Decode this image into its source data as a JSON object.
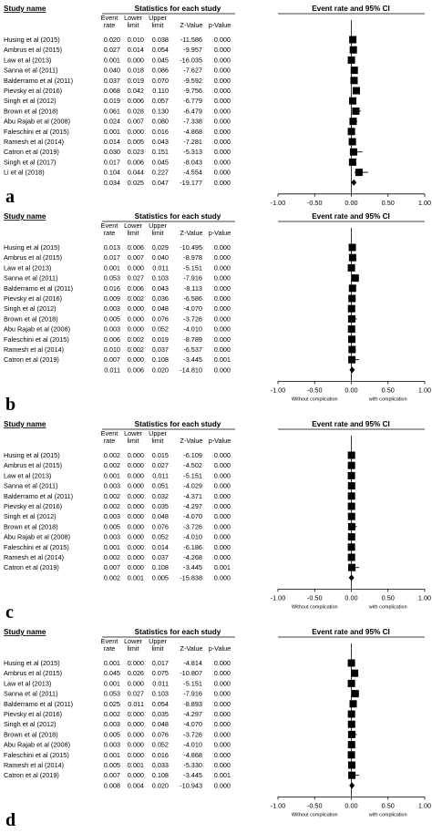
{
  "chart_data": [
    {
      "type": "forest",
      "panel_label": "a",
      "header": {
        "study_name": "Study name",
        "stats_title": "Statistics for each study",
        "plot_title": "Event rate and 95% CI"
      },
      "columns": [
        "Event rate",
        "Lower limit",
        "Upper limit",
        "Z-Value",
        "p-Value"
      ],
      "col_head": [
        [
          "Event",
          "rate"
        ],
        [
          "Lower",
          "limit"
        ],
        [
          "Upper",
          "limit"
        ],
        [
          "",
          "Z-Value"
        ],
        [
          "",
          "p-Value"
        ]
      ],
      "studies": [
        {
          "name": "Husing et al (2015)",
          "values": [
            "0.020",
            "0.010",
            "0.038",
            "-11.586",
            "0.000"
          ],
          "rate": 0.02,
          "lo": 0.01,
          "hi": 0.038
        },
        {
          "name": "Ambrus et al (2015)",
          "values": [
            "0.027",
            "0.014",
            "0.054",
            "-9.957",
            "0.000"
          ],
          "rate": 0.027,
          "lo": 0.014,
          "hi": 0.054
        },
        {
          "name": "Law et al (2013)",
          "values": [
            "0.001",
            "0.000",
            "0.045",
            "-16.035",
            "0.000"
          ],
          "rate": 0.001,
          "lo": 0.0,
          "hi": 0.045
        },
        {
          "name": "Sanna et al (2011)",
          "values": [
            "0.040",
            "0.018",
            "0.086",
            "-7.627",
            "0.000"
          ],
          "rate": 0.04,
          "lo": 0.018,
          "hi": 0.086
        },
        {
          "name": "Balderramo et al (2011)",
          "values": [
            "0.037",
            "0.019",
            "0.070",
            "-9.592",
            "0.000"
          ],
          "rate": 0.037,
          "lo": 0.019,
          "hi": 0.07
        },
        {
          "name": "Pievsky et al (2016)",
          "values": [
            "0.068",
            "0.042",
            "0.110",
            "-9.756",
            "0.000"
          ],
          "rate": 0.068,
          "lo": 0.042,
          "hi": 0.11
        },
        {
          "name": "Singh et al (2012)",
          "values": [
            "0.019",
            "0.006",
            "0.057",
            "-6.779",
            "0.000"
          ],
          "rate": 0.019,
          "lo": 0.006,
          "hi": 0.057
        },
        {
          "name": "Brown et al (2018)",
          "values": [
            "0.061",
            "0.028",
            "0.130",
            "-6.479",
            "0.000"
          ],
          "rate": 0.061,
          "lo": 0.028,
          "hi": 0.13
        },
        {
          "name": "Abu Rajab et al (2008)",
          "values": [
            "0.024",
            "0.007",
            "0.080",
            "-7.338",
            "0.000"
          ],
          "rate": 0.024,
          "lo": 0.007,
          "hi": 0.08
        },
        {
          "name": "Faleschini et al (2015)",
          "values": [
            "0.001",
            "0.000",
            "0.016",
            "-4.868",
            "0.000"
          ],
          "rate": 0.001,
          "lo": 0.0,
          "hi": 0.016
        },
        {
          "name": "Ramesh et al (2014)",
          "values": [
            "0.014",
            "0.005",
            "0.043",
            "-7.281",
            "0.000"
          ],
          "rate": 0.014,
          "lo": 0.005,
          "hi": 0.043
        },
        {
          "name": "Catron et al (2019)",
          "values": [
            "0.030",
            "0.023",
            "0.151",
            "-5.313",
            "0.000"
          ],
          "rate": 0.03,
          "lo": 0.023,
          "hi": 0.151
        },
        {
          "name": "Singh et al (2017)",
          "values": [
            "0.017",
            "0.006",
            "0.045",
            "-8.043",
            "0.000"
          ],
          "rate": 0.017,
          "lo": 0.006,
          "hi": 0.045
        },
        {
          "name": "Li et al (2018)",
          "values": [
            "0.104",
            "0.044",
            "0.227",
            "-4.554",
            "0.000"
          ],
          "rate": 0.104,
          "lo": 0.044,
          "hi": 0.227
        }
      ],
      "pooled": {
        "values": [
          "0.034",
          "0.025",
          "0.047",
          "-19.177",
          "0.000"
        ],
        "rate": 0.034,
        "lo": 0.025,
        "hi": 0.047
      },
      "x_ticks": [
        "-1.00",
        "-0.50",
        "0.00",
        "0.50",
        "1.00"
      ],
      "xlim": [
        -1,
        1
      ],
      "footer_left": "Without complication",
      "footer_right": "with complication"
    },
    {
      "type": "forest",
      "panel_label": "b",
      "header": {
        "study_name": "Study name",
        "stats_title": "Statistics for each study",
        "plot_title": "Event rate and 95% CI"
      },
      "columns": [
        "Event rate",
        "Lower limit",
        "Upper limit",
        "Z-Value",
        "p-Value"
      ],
      "col_head": [
        [
          "Event",
          "rate"
        ],
        [
          "Lower",
          "limit"
        ],
        [
          "Upper",
          "limit"
        ],
        [
          "",
          "Z-Value"
        ],
        [
          "",
          "p-Value"
        ]
      ],
      "studies": [
        {
          "name": "Husing et al (2015)",
          "values": [
            "0.013",
            "0.006",
            "0.029",
            "-10.495",
            "0.000"
          ],
          "rate": 0.013,
          "lo": 0.006,
          "hi": 0.029
        },
        {
          "name": "Ambrus et al (2015)",
          "values": [
            "0.017",
            "0.007",
            "0.040",
            "-8.978",
            "0.000"
          ],
          "rate": 0.017,
          "lo": 0.007,
          "hi": 0.04
        },
        {
          "name": "Law et al (2013)",
          "values": [
            "0.001",
            "0.000",
            "0.011",
            "-5.151",
            "0.000"
          ],
          "rate": 0.001,
          "lo": 0.0,
          "hi": 0.011
        },
        {
          "name": "Sanna et al (2011)",
          "values": [
            "0.053",
            "0.027",
            "0.103",
            "-7.916",
            "0.000"
          ],
          "rate": 0.053,
          "lo": 0.027,
          "hi": 0.103
        },
        {
          "name": "Balderramo et al (2011)",
          "values": [
            "0.016",
            "0.006",
            "0.043",
            "-8.113",
            "0.000"
          ],
          "rate": 0.016,
          "lo": 0.006,
          "hi": 0.043
        },
        {
          "name": "Pievsky et al (2016)",
          "values": [
            "0.009",
            "0.002",
            "0.036",
            "-6.586",
            "0.000"
          ],
          "rate": 0.009,
          "lo": 0.002,
          "hi": 0.036
        },
        {
          "name": "Singh et al (2012)",
          "values": [
            "0.003",
            "0.000",
            "0.048",
            "-4.070",
            "0.000"
          ],
          "rate": 0.003,
          "lo": 0.0,
          "hi": 0.048
        },
        {
          "name": "Brown et al (2018)",
          "values": [
            "0.005",
            "0.000",
            "0.076",
            "-3.726",
            "0.000"
          ],
          "rate": 0.005,
          "lo": 0.0,
          "hi": 0.076
        },
        {
          "name": "Abu Rajab et al (2008)",
          "values": [
            "0.003",
            "0.000",
            "0.052",
            "-4.010",
            "0.000"
          ],
          "rate": 0.003,
          "lo": 0.0,
          "hi": 0.052
        },
        {
          "name": "Faleschini et al (2015)",
          "values": [
            "0.006",
            "0.002",
            "0.019",
            "-8.789",
            "0.000"
          ],
          "rate": 0.006,
          "lo": 0.002,
          "hi": 0.019
        },
        {
          "name": "Ramesh et al (2014)",
          "values": [
            "0.010",
            "0.002",
            "0.037",
            "-6.537",
            "0.000"
          ],
          "rate": 0.01,
          "lo": 0.002,
          "hi": 0.037
        },
        {
          "name": "Catron et al (2019)",
          "values": [
            "0.007",
            "0.000",
            "0.108",
            "-3.445",
            "0.001"
          ],
          "rate": 0.007,
          "lo": 0.0,
          "hi": 0.108
        }
      ],
      "pooled": {
        "values": [
          "0.011",
          "0.006",
          "0.020",
          "-14.810",
          "0.000"
        ],
        "rate": 0.011,
        "lo": 0.006,
        "hi": 0.02
      },
      "x_ticks": [
        "-1.00",
        "-0.50",
        "0.00",
        "0.50",
        "1.00"
      ],
      "xlim": [
        -1,
        1
      ],
      "footer_left": "Without complication",
      "footer_right": "with complication"
    },
    {
      "type": "forest",
      "panel_label": "c",
      "header": {
        "study_name": "Study name",
        "stats_title": "Statistics for each study",
        "plot_title": "Event rate and 95% CI"
      },
      "columns": [
        "Event rate",
        "Lower limit",
        "Upper limit",
        "Z-Value",
        "p-Value"
      ],
      "col_head": [
        [
          "Event",
          "rate"
        ],
        [
          "Lower",
          "limit"
        ],
        [
          "Upper",
          "limit"
        ],
        [
          "",
          "Z-Value"
        ],
        [
          "",
          "p-Value"
        ]
      ],
      "studies": [
        {
          "name": "Husing et al (2015)",
          "values": [
            "0.002",
            "0.000",
            "0.015",
            "-6.109",
            "0.000"
          ],
          "rate": 0.002,
          "lo": 0.0,
          "hi": 0.015
        },
        {
          "name": "Ambrus et al (2015)",
          "values": [
            "0.002",
            "0.000",
            "0.027",
            "-4.502",
            "0.000"
          ],
          "rate": 0.002,
          "lo": 0.0,
          "hi": 0.027
        },
        {
          "name": "Law et al (2013)",
          "values": [
            "0.001",
            "0.000",
            "0.011",
            "-5.151",
            "0.000"
          ],
          "rate": 0.001,
          "lo": 0.0,
          "hi": 0.011
        },
        {
          "name": "Sanna et al (2011)",
          "values": [
            "0.003",
            "0.000",
            "0.051",
            "-4.029",
            "0.000"
          ],
          "rate": 0.003,
          "lo": 0.0,
          "hi": 0.051
        },
        {
          "name": "Balderramo et al (2011)",
          "values": [
            "0.002",
            "0.000",
            "0.032",
            "-4.371",
            "0.000"
          ],
          "rate": 0.002,
          "lo": 0.0,
          "hi": 0.032
        },
        {
          "name": "Pievsky et al (2016)",
          "values": [
            "0.002",
            "0.000",
            "0.035",
            "-4.297",
            "0.000"
          ],
          "rate": 0.002,
          "lo": 0.0,
          "hi": 0.035
        },
        {
          "name": "Singh et al (2012)",
          "values": [
            "0.003",
            "0.000",
            "0.048",
            "-4.070",
            "0.000"
          ],
          "rate": 0.003,
          "lo": 0.0,
          "hi": 0.048
        },
        {
          "name": "Brown et al (2018)",
          "values": [
            "0.005",
            "0.000",
            "0.076",
            "-3.726",
            "0.000"
          ],
          "rate": 0.005,
          "lo": 0.0,
          "hi": 0.076
        },
        {
          "name": "Abu Rajab et al (2008)",
          "values": [
            "0.003",
            "0.000",
            "0.052",
            "-4.010",
            "0.000"
          ],
          "rate": 0.003,
          "lo": 0.0,
          "hi": 0.052
        },
        {
          "name": "Faleschini et al (2015)",
          "values": [
            "0.001",
            "0.000",
            "0.014",
            "-6.186",
            "0.000"
          ],
          "rate": 0.001,
          "lo": 0.0,
          "hi": 0.014
        },
        {
          "name": "Ramesh et al (2014)",
          "values": [
            "0.002",
            "0.000",
            "0.037",
            "-4.268",
            "0.000"
          ],
          "rate": 0.002,
          "lo": 0.0,
          "hi": 0.037
        },
        {
          "name": "Catron et al (2019)",
          "values": [
            "0.007",
            "0.000",
            "0.108",
            "-3.445",
            "0.001"
          ],
          "rate": 0.007,
          "lo": 0.0,
          "hi": 0.108
        }
      ],
      "pooled": {
        "values": [
          "0.002",
          "0.001",
          "0.005",
          "-15.838",
          "0.000"
        ],
        "rate": 0.002,
        "lo": 0.001,
        "hi": 0.005
      },
      "x_ticks": [
        "-1.00",
        "-0.50",
        "0.00",
        "0.50",
        "1.00"
      ],
      "xlim": [
        -1,
        1
      ],
      "footer_left": "Without complication",
      "footer_right": "with complication"
    },
    {
      "type": "forest",
      "panel_label": "d",
      "header": {
        "study_name": "Study name",
        "stats_title": "Statistics for each study",
        "plot_title": "Event rate and 95% CI"
      },
      "columns": [
        "Event rate",
        "Lower limit",
        "Upper limit",
        "Z-Value",
        "p-Value"
      ],
      "col_head": [
        [
          "Event",
          "rate"
        ],
        [
          "Lower",
          "limit"
        ],
        [
          "Upper",
          "limit"
        ],
        [
          "",
          "Z-Value"
        ],
        [
          "",
          "p-Value"
        ]
      ],
      "studies": [
        {
          "name": "Husing et al (2015)",
          "values": [
            "0.001",
            "0.000",
            "0.017",
            "-4.814",
            "0.000"
          ],
          "rate": 0.001,
          "lo": 0.0,
          "hi": 0.017
        },
        {
          "name": "Ambrus et al (2015)",
          "values": [
            "0.045",
            "0.026",
            "0.075",
            "-10.807",
            "0.000"
          ],
          "rate": 0.045,
          "lo": 0.026,
          "hi": 0.075
        },
        {
          "name": "Law et al (2013)",
          "values": [
            "0.001",
            "0.000",
            "0.011",
            "-5.151",
            "0.000"
          ],
          "rate": 0.001,
          "lo": 0.0,
          "hi": 0.011
        },
        {
          "name": "Sanna et al (2011)",
          "values": [
            "0.053",
            "0.027",
            "0.103",
            "-7.916",
            "0.000"
          ],
          "rate": 0.053,
          "lo": 0.027,
          "hi": 0.103
        },
        {
          "name": "Balderramo et al (2011)",
          "values": [
            "0.025",
            "0.011",
            "0.054",
            "-8.893",
            "0.000"
          ],
          "rate": 0.025,
          "lo": 0.011,
          "hi": 0.054
        },
        {
          "name": "Pievsky et al (2016)",
          "values": [
            "0.002",
            "0.000",
            "0.035",
            "-4.297",
            "0.000"
          ],
          "rate": 0.002,
          "lo": 0.0,
          "hi": 0.035
        },
        {
          "name": "Singh et al (2012)",
          "values": [
            "0.003",
            "0.000",
            "0.048",
            "-4.070",
            "0.000"
          ],
          "rate": 0.003,
          "lo": 0.0,
          "hi": 0.048
        },
        {
          "name": "Brown et al (2018)",
          "values": [
            "0.005",
            "0.000",
            "0.076",
            "-3.726",
            "0.000"
          ],
          "rate": 0.005,
          "lo": 0.0,
          "hi": 0.076
        },
        {
          "name": "Abu Rajab et al (2008)",
          "values": [
            "0.003",
            "0.000",
            "0.052",
            "-4.010",
            "0.000"
          ],
          "rate": 0.003,
          "lo": 0.0,
          "hi": 0.052
        },
        {
          "name": "Faleschini et al (2015)",
          "values": [
            "0.001",
            "0.000",
            "0.016",
            "-4.868",
            "0.000"
          ],
          "rate": 0.001,
          "lo": 0.0,
          "hi": 0.016
        },
        {
          "name": "Ramesh et al (2014)",
          "values": [
            "0.005",
            "0.001",
            "0.033",
            "-5.330",
            "0.000"
          ],
          "rate": 0.005,
          "lo": 0.001,
          "hi": 0.033
        },
        {
          "name": "Catron et al (2019)",
          "values": [
            "0.007",
            "0.000",
            "0.108",
            "-3.445",
            "0.001"
          ],
          "rate": 0.007,
          "lo": 0.0,
          "hi": 0.108
        }
      ],
      "pooled": {
        "values": [
          "0.008",
          "0.004",
          "0.020",
          "-10.943",
          "0.000"
        ],
        "rate": 0.008,
        "lo": 0.004,
        "hi": 0.02
      },
      "x_ticks": [
        "-1.00",
        "-0.50",
        "0.00",
        "0.50",
        "1.00"
      ],
      "xlim": [
        -1,
        1
      ],
      "footer_left": "Without complication",
      "footer_right": "with complication"
    }
  ]
}
